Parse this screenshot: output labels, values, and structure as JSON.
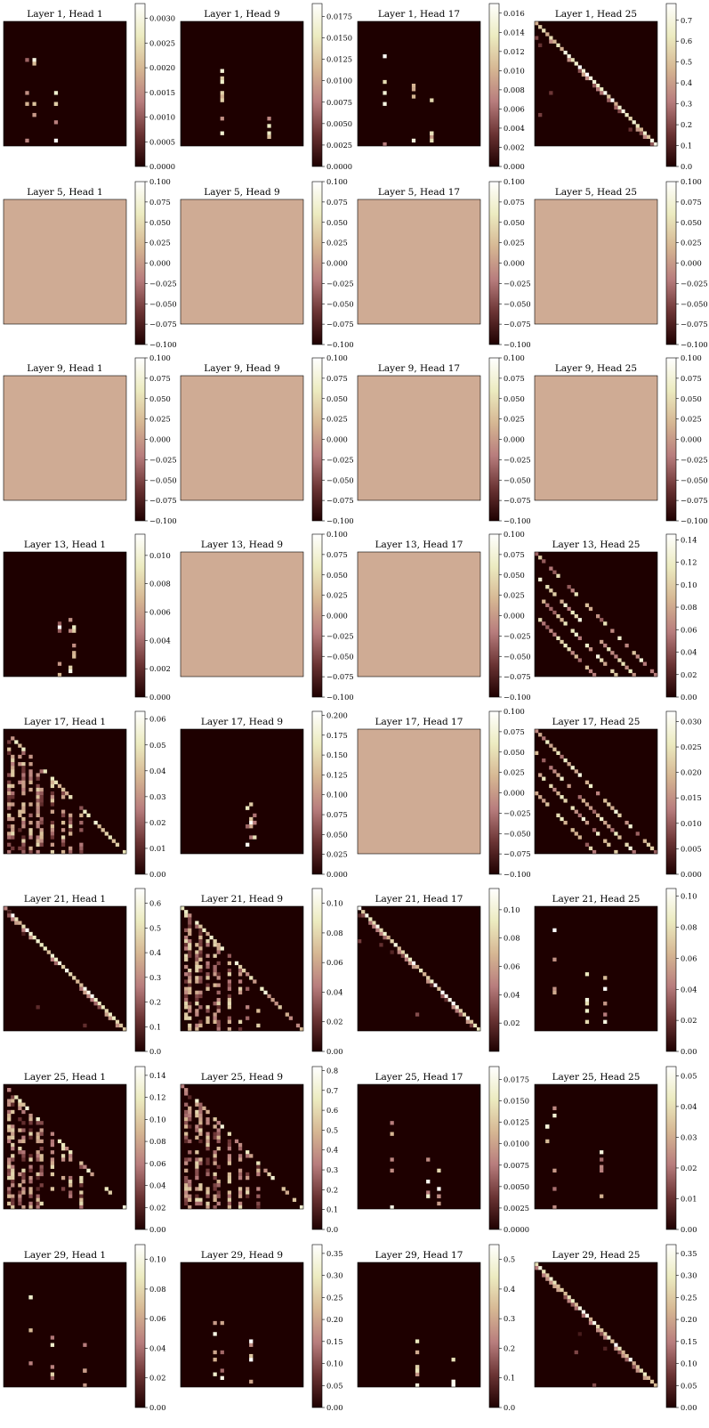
{
  "figure": {
    "colormap": "pink",
    "colormap_stops": [
      "#1e0000",
      "#6b3434",
      "#b87d7d",
      "#d6b793",
      "#ecebc0",
      "#ffffff"
    ],
    "uniform_color": "#cfab94",
    "panels": [
      {
        "title": "Layer 1, Head 1",
        "kind": "sparse",
        "ticks": [
          "0.0000",
          "0.0005",
          "0.0010",
          "0.0015",
          "0.0020",
          "0.0025",
          "0.0030"
        ],
        "vmin": 0,
        "vmax": 0.0033
      },
      {
        "title": "Layer 1, Head 9",
        "kind": "sparse",
        "ticks": [
          "0.0000",
          "0.0025",
          "0.0050",
          "0.0075",
          "0.0100",
          "0.0125",
          "0.0150",
          "0.0175"
        ],
        "vmin": 0,
        "vmax": 0.019
      },
      {
        "title": "Layer 1, Head 17",
        "kind": "sparse",
        "ticks": [
          "0.000",
          "0.002",
          "0.004",
          "0.006",
          "0.008",
          "0.010",
          "0.012",
          "0.014",
          "0.016"
        ],
        "vmin": 0,
        "vmax": 0.017
      },
      {
        "title": "Layer 1, Head 25",
        "kind": "diag",
        "ticks": [
          "0.0",
          "0.1",
          "0.2",
          "0.3",
          "0.4",
          "0.5",
          "0.6",
          "0.7"
        ],
        "vmin": 0,
        "vmax": 0.78
      },
      {
        "title": "Layer 5, Head 1",
        "kind": "uniform",
        "ticks": [
          "−0.100",
          "−0.075",
          "−0.050",
          "−0.025",
          "0.000",
          "0.025",
          "0.050",
          "0.075",
          "0.100"
        ],
        "vmin": -0.1,
        "vmax": 0.1
      },
      {
        "title": "Layer 5, Head 9",
        "kind": "uniform",
        "ticks": [
          "−0.100",
          "−0.075",
          "−0.050",
          "−0.025",
          "0.000",
          "0.025",
          "0.050",
          "0.075",
          "0.100"
        ],
        "vmin": -0.1,
        "vmax": 0.1
      },
      {
        "title": "Layer 5, Head 17",
        "kind": "uniform",
        "ticks": [
          "−0.100",
          "−0.075",
          "−0.050",
          "−0.025",
          "0.000",
          "0.025",
          "0.050",
          "0.075",
          "0.100"
        ],
        "vmin": -0.1,
        "vmax": 0.1
      },
      {
        "title": "Layer 5, Head 25",
        "kind": "uniform",
        "ticks": [
          "−0.100",
          "−0.075",
          "−0.050",
          "−0.025",
          "0.000",
          "0.025",
          "0.050",
          "0.075",
          "0.100"
        ],
        "vmin": -0.1,
        "vmax": 0.1
      },
      {
        "title": "Layer 9, Head 1",
        "kind": "uniform",
        "ticks": [
          "−0.100",
          "−0.075",
          "−0.050",
          "−0.025",
          "0.000",
          "0.025",
          "0.050",
          "0.075",
          "0.100"
        ],
        "vmin": -0.1,
        "vmax": 0.1
      },
      {
        "title": "Layer 9, Head 9",
        "kind": "uniform",
        "ticks": [
          "−0.100",
          "−0.075",
          "−0.050",
          "−0.025",
          "0.000",
          "0.025",
          "0.050",
          "0.075",
          "0.100"
        ],
        "vmin": -0.1,
        "vmax": 0.1
      },
      {
        "title": "Layer 9, Head 17",
        "kind": "uniform",
        "ticks": [
          "−0.100",
          "−0.075",
          "−0.050",
          "−0.025",
          "0.000",
          "0.025",
          "0.050",
          "0.075",
          "0.100"
        ],
        "vmin": -0.1,
        "vmax": 0.1
      },
      {
        "title": "Layer 9, Head 25",
        "kind": "uniform",
        "ticks": [
          "−0.100",
          "−0.075",
          "−0.050",
          "−0.025",
          "0.000",
          "0.025",
          "0.050",
          "0.075",
          "0.100"
        ],
        "vmin": -0.1,
        "vmax": 0.1
      },
      {
        "title": "Layer 13, Head 1",
        "kind": "sparse",
        "ticks": [
          "0.000",
          "0.002",
          "0.004",
          "0.006",
          "0.008",
          "0.010"
        ],
        "vmin": 0,
        "vmax": 0.0115
      },
      {
        "title": "Layer 13, Head 9",
        "kind": "uniform",
        "ticks": [
          "−0.100",
          "−0.075",
          "−0.050",
          "−0.025",
          "0.000",
          "0.025",
          "0.050",
          "0.075",
          "0.100"
        ],
        "vmin": -0.1,
        "vmax": 0.1
      },
      {
        "title": "Layer 13, Head 17",
        "kind": "uniform",
        "ticks": [
          "−0.100",
          "−0.075",
          "−0.050",
          "−0.025",
          "0.000",
          "0.025",
          "0.050",
          "0.075",
          "0.100"
        ],
        "vmin": -0.1,
        "vmax": 0.1
      },
      {
        "title": "Layer 13, Head 25",
        "kind": "multidiag",
        "ticks": [
          "0.00",
          "0.02",
          "0.04",
          "0.06",
          "0.08",
          "0.10",
          "0.12",
          "0.14"
        ],
        "vmin": 0,
        "vmax": 0.145
      },
      {
        "title": "Layer 17, Head 1",
        "kind": "lowertri",
        "ticks": [
          "0.00",
          "0.01",
          "0.02",
          "0.03",
          "0.04",
          "0.05",
          "0.06"
        ],
        "vmin": 0,
        "vmax": 0.063
      },
      {
        "title": "Layer 17, Head 9",
        "kind": "sparse",
        "ticks": [
          "0.000",
          "0.025",
          "0.050",
          "0.075",
          "0.100",
          "0.125",
          "0.150",
          "0.175",
          "0.200"
        ],
        "vmin": 0,
        "vmax": 0.205
      },
      {
        "title": "Layer 17, Head 17",
        "kind": "uniform",
        "ticks": [
          "−0.100",
          "−0.075",
          "−0.050",
          "−0.025",
          "0.000",
          "0.025",
          "0.050",
          "0.075",
          "0.100"
        ],
        "vmin": -0.1,
        "vmax": 0.1
      },
      {
        "title": "Layer 17, Head 25",
        "kind": "multidiag",
        "ticks": [
          "0.000",
          "0.005",
          "0.010",
          "0.015",
          "0.020",
          "0.025",
          "0.030"
        ],
        "vmin": 0,
        "vmax": 0.032
      },
      {
        "title": "Layer 21, Head 1",
        "kind": "diag",
        "ticks": [
          "0.0",
          "0.1",
          "0.2",
          "0.3",
          "0.4",
          "0.5",
          "0.6"
        ],
        "vmin": 0,
        "vmax": 0.66
      },
      {
        "title": "Layer 21, Head 9",
        "kind": "lowertri",
        "ticks": [
          "0.00",
          "0.02",
          "0.04",
          "0.06",
          "0.08",
          "0.10"
        ],
        "vmin": 0,
        "vmax": 0.11
      },
      {
        "title": "Layer 21, Head 17",
        "kind": "diag",
        "ticks": [
          "0.02",
          "0.04",
          "0.06",
          "0.08",
          "0.10"
        ],
        "vmin": 0,
        "vmax": 0.115
      },
      {
        "title": "Layer 21, Head 25",
        "kind": "sparse",
        "ticks": [
          "0.00",
          "0.02",
          "0.04",
          "0.06",
          "0.08",
          "0.10"
        ],
        "vmin": 0,
        "vmax": 0.105
      },
      {
        "title": "Layer 25, Head 1",
        "kind": "lowertri",
        "ticks": [
          "0.00",
          "0.02",
          "0.04",
          "0.06",
          "0.08",
          "0.10",
          "0.12",
          "0.14"
        ],
        "vmin": 0,
        "vmax": 0.148
      },
      {
        "title": "Layer 25, Head 9",
        "kind": "lowertri",
        "ticks": [
          "0.0",
          "0.1",
          "0.2",
          "0.3",
          "0.4",
          "0.5",
          "0.6",
          "0.7",
          "0.8"
        ],
        "vmin": 0,
        "vmax": 0.82
      },
      {
        "title": "Layer 25, Head 17",
        "kind": "sparse",
        "ticks": [
          "0.0000",
          "0.0025",
          "0.0050",
          "0.0075",
          "0.0100",
          "0.0125",
          "0.0150",
          "0.0175"
        ],
        "vmin": 0,
        "vmax": 0.019
      },
      {
        "title": "Layer 25, Head 25",
        "kind": "sparse",
        "ticks": [
          "0.00",
          "0.01",
          "0.02",
          "0.03",
          "0.04",
          "0.05"
        ],
        "vmin": 0,
        "vmax": 0.053
      },
      {
        "title": "Layer 29, Head 1",
        "kind": "sparse",
        "ticks": [
          "0.00",
          "0.02",
          "0.04",
          "0.06",
          "0.08",
          "0.10"
        ],
        "vmin": 0,
        "vmax": 0.11
      },
      {
        "title": "Layer 29, Head 9",
        "kind": "sparse",
        "ticks": [
          "0.00",
          "0.05",
          "0.10",
          "0.15",
          "0.20",
          "0.25",
          "0.30",
          "0.35"
        ],
        "vmin": 0,
        "vmax": 0.37
      },
      {
        "title": "Layer 29, Head 17",
        "kind": "sparse",
        "ticks": [
          "0.0",
          "0.1",
          "0.2",
          "0.3",
          "0.4",
          "0.5"
        ],
        "vmin": 0,
        "vmax": 0.55
      },
      {
        "title": "Layer 29, Head 25",
        "kind": "diag",
        "ticks": [
          "0.00",
          "0.05",
          "0.10",
          "0.15",
          "0.20",
          "0.25",
          "0.30",
          "0.35"
        ],
        "vmin": 0,
        "vmax": 0.37
      }
    ]
  },
  "chart_data": {
    "type": "heatmap",
    "layout": "8 rows x 4 columns of attention heatmaps, each with its own colorbar",
    "grid": false,
    "colormap": "pink",
    "panels_by_title": [
      "Layer 1, Head 1",
      "Layer 1, Head 9",
      "Layer 1, Head 17",
      "Layer 1, Head 25",
      "Layer 5, Head 1",
      "Layer 5, Head 9",
      "Layer 5, Head 17",
      "Layer 5, Head 25",
      "Layer 9, Head 1",
      "Layer 9, Head 9",
      "Layer 9, Head 17",
      "Layer 9, Head 25",
      "Layer 13, Head 1",
      "Layer 13, Head 9",
      "Layer 13, Head 17",
      "Layer 13, Head 25",
      "Layer 17, Head 1",
      "Layer 17, Head 9",
      "Layer 17, Head 17",
      "Layer 17, Head 25",
      "Layer 21, Head 1",
      "Layer 21, Head 9",
      "Layer 21, Head 17",
      "Layer 21, Head 25",
      "Layer 25, Head 1",
      "Layer 25, Head 9",
      "Layer 25, Head 17",
      "Layer 25, Head 25",
      "Layer 29, Head 1",
      "Layer 29, Head 9",
      "Layer 29, Head 17",
      "Layer 29, Head 25"
    ],
    "uniform_panels_value": 0.0
  }
}
